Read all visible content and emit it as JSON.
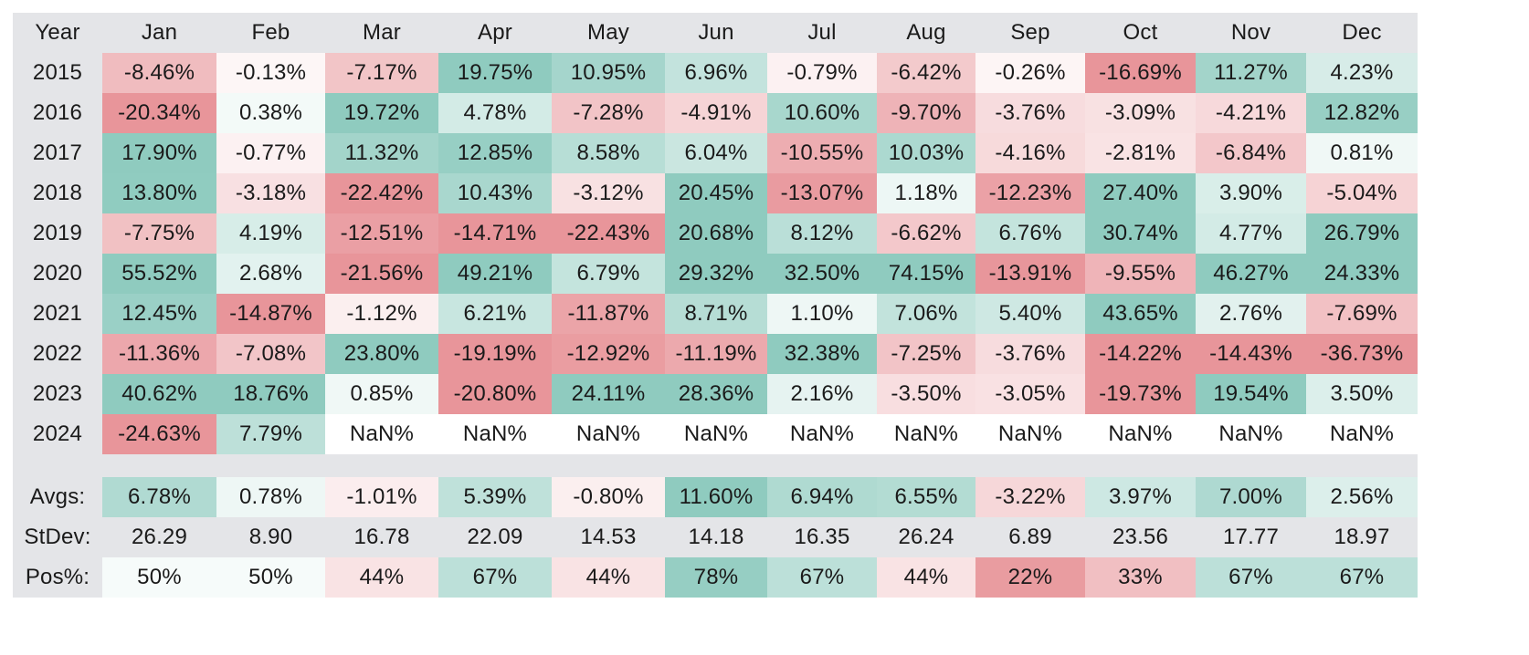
{
  "table": {
    "header": [
      "Year",
      "Jan",
      "Feb",
      "Mar",
      "Apr",
      "May",
      "Jun",
      "Jul",
      "Aug",
      "Sep",
      "Oct",
      "Nov",
      "Dec"
    ],
    "rows": [
      [
        "2015",
        "-8.46%",
        "-0.13%",
        "-7.17%",
        "19.75%",
        "10.95%",
        "6.96%",
        "-0.79%",
        "-6.42%",
        "-0.26%",
        "-16.69%",
        "11.27%",
        "4.23%"
      ],
      [
        "2016",
        "-20.34%",
        "0.38%",
        "19.72%",
        "4.78%",
        "-7.28%",
        "-4.91%",
        "10.60%",
        "-9.70%",
        "-3.76%",
        "-3.09%",
        "-4.21%",
        "12.82%"
      ],
      [
        "2017",
        "17.90%",
        "-0.77%",
        "11.32%",
        "12.85%",
        "8.58%",
        "6.04%",
        "-10.55%",
        "10.03%",
        "-4.16%",
        "-2.81%",
        "-6.84%",
        "0.81%"
      ],
      [
        "2018",
        "13.80%",
        "-3.18%",
        "-22.42%",
        "10.43%",
        "-3.12%",
        "20.45%",
        "-13.07%",
        "1.18%",
        "-12.23%",
        "27.40%",
        "3.90%",
        "-5.04%"
      ],
      [
        "2019",
        "-7.75%",
        "4.19%",
        "-12.51%",
        "-14.71%",
        "-22.43%",
        "20.68%",
        "8.12%",
        "-6.62%",
        "6.76%",
        "30.74%",
        "4.77%",
        "26.79%"
      ],
      [
        "2020",
        "55.52%",
        "2.68%",
        "-21.56%",
        "49.21%",
        "6.79%",
        "29.32%",
        "32.50%",
        "74.15%",
        "-13.91%",
        "-9.55%",
        "46.27%",
        "24.33%"
      ],
      [
        "2021",
        "12.45%",
        "-14.87%",
        "-1.12%",
        "6.21%",
        "-11.87%",
        "8.71%",
        "1.10%",
        "7.06%",
        "5.40%",
        "43.65%",
        "2.76%",
        "-7.69%"
      ],
      [
        "2022",
        "-11.36%",
        "-7.08%",
        "23.80%",
        "-19.19%",
        "-12.92%",
        "-11.19%",
        "32.38%",
        "-7.25%",
        "-3.76%",
        "-14.22%",
        "-14.43%",
        "-36.73%"
      ],
      [
        "2023",
        "40.62%",
        "18.76%",
        "0.85%",
        "-20.80%",
        "24.11%",
        "28.36%",
        "2.16%",
        "-3.50%",
        "-3.05%",
        "-19.73%",
        "19.54%",
        "3.50%"
      ],
      [
        "2024",
        "-24.63%",
        "7.79%",
        "NaN%",
        "NaN%",
        "NaN%",
        "NaN%",
        "NaN%",
        "NaN%",
        "NaN%",
        "NaN%",
        "NaN%",
        "NaN%"
      ]
    ],
    "summary": [
      [
        "Avgs:",
        "6.78%",
        "0.78%",
        "-1.01%",
        "5.39%",
        "-0.80%",
        "11.60%",
        "6.94%",
        "6.55%",
        "-3.22%",
        "3.97%",
        "7.00%",
        "2.56%"
      ],
      [
        "StDev:",
        "26.29",
        "8.90",
        "16.78",
        "22.09",
        "14.53",
        "14.18",
        "16.35",
        "26.24",
        "6.89",
        "23.56",
        "17.77",
        "18.97"
      ],
      [
        "Pos%:",
        "50%",
        "50%",
        "44%",
        "67%",
        "44%",
        "78%",
        "67%",
        "44%",
        "22%",
        "33%",
        "67%",
        "67%"
      ]
    ]
  }
}
